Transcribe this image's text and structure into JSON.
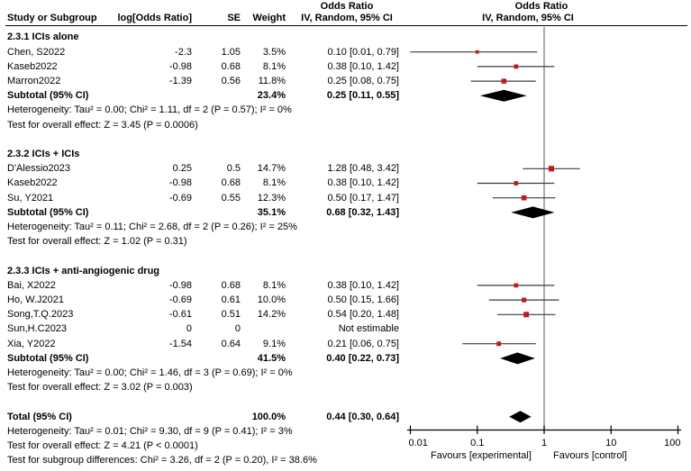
{
  "header": {
    "col_study": "Study or Subgroup",
    "col_logor": "log[Odds Ratio]",
    "col_se": "SE",
    "col_weight": "Weight",
    "or_title": "Odds Ratio",
    "or_method": "IV, Random, 95% CI",
    "or_title_plot": "Odds Ratio",
    "or_method_plot": "IV, Random, 95% CI"
  },
  "colors": {
    "marker": "#c0181e",
    "diamond": "#000000",
    "ci_line": "#3c3c3c",
    "ref_line": "#808080",
    "axis": "#000000",
    "text": "#000000",
    "background": "#ffffff"
  },
  "chart_data": {
    "type": "forest",
    "effect_measure": "Odds Ratio",
    "model": "IV, Random, 95% CI",
    "axis": {
      "scale": "log",
      "min": 0.01,
      "max": 100,
      "ticks": [
        {
          "v": 0.01,
          "label": "0.01"
        },
        {
          "v": 0.1,
          "label": "0.1"
        },
        {
          "v": 1,
          "label": "1"
        },
        {
          "v": 10,
          "label": "10"
        },
        {
          "v": 100,
          "label": "100"
        }
      ],
      "favours_left": "Favours [experimental]",
      "favours_right": "Favours [control]"
    },
    "rows": [
      {
        "type": "section",
        "label": "2.3.1 ICIs alone"
      },
      {
        "type": "study",
        "label": "Chen, S2022",
        "logor": "-2.3",
        "se": "1.05",
        "weight": "3.5%",
        "ci": "0.10 [0.01, 0.79]",
        "est": 0.1,
        "lo": 0.01,
        "hi": 0.79,
        "w": 3.5
      },
      {
        "type": "study",
        "label": "Kaseb2022",
        "logor": "-0.98",
        "se": "0.68",
        "weight": "8.1%",
        "ci": "0.38 [0.10, 1.42]",
        "est": 0.38,
        "lo": 0.1,
        "hi": 1.42,
        "w": 8.1
      },
      {
        "type": "study",
        "label": "Marron2022",
        "logor": "-1.39",
        "se": "0.56",
        "weight": "11.8%",
        "ci": "0.25 [0.08, 0.75]",
        "est": 0.25,
        "lo": 0.08,
        "hi": 0.75,
        "w": 11.8
      },
      {
        "type": "subtotal",
        "label": "Subtotal (95% CI)",
        "weight": "23.4%",
        "ci": "0.25 [0.11, 0.55]",
        "est": 0.25,
        "lo": 0.11,
        "hi": 0.55
      },
      {
        "type": "note",
        "label": "Heterogeneity: Tau² = 0.00; Chi² = 1.11, df = 2 (P = 0.57); I² = 0%"
      },
      {
        "type": "note",
        "label": "Test for overall effect: Z = 3.45 (P = 0.0006)"
      },
      {
        "type": "blank"
      },
      {
        "type": "section",
        "label": "2.3.2 ICIs + ICIs"
      },
      {
        "type": "study",
        "label": "D'Alessio2023",
        "logor": "0.25",
        "se": "0.5",
        "weight": "14.7%",
        "ci": "1.28 [0.48, 3.42]",
        "est": 1.28,
        "lo": 0.48,
        "hi": 3.42,
        "w": 14.7
      },
      {
        "type": "study",
        "label": "Kaseb2022",
        "logor": "-0.98",
        "se": "0.68",
        "weight": "8.1%",
        "ci": "0.38 [0.10, 1.42]",
        "est": 0.38,
        "lo": 0.1,
        "hi": 1.42,
        "w": 8.1
      },
      {
        "type": "study",
        "label": "Su, Y2021",
        "logor": "-0.69",
        "se": "0.55",
        "weight": "12.3%",
        "ci": "0.50 [0.17, 1.47]",
        "est": 0.5,
        "lo": 0.17,
        "hi": 1.47,
        "w": 12.3
      },
      {
        "type": "subtotal",
        "label": "Subtotal (95% CI)",
        "weight": "35.1%",
        "ci": "0.68 [0.32, 1.43]",
        "est": 0.68,
        "lo": 0.32,
        "hi": 1.43
      },
      {
        "type": "note",
        "label": "Heterogeneity: Tau² = 0.11; Chi² = 2.68, df = 2 (P = 0.26); I² = 25%"
      },
      {
        "type": "note",
        "label": "Test for overall effect: Z = 1.02 (P = 0.31)"
      },
      {
        "type": "blank"
      },
      {
        "type": "section",
        "label": "2.3.3 ICIs + anti-angiogenic drug"
      },
      {
        "type": "study",
        "label": "Bai, X2022",
        "logor": "-0.98",
        "se": "0.68",
        "weight": "8.1%",
        "ci": "0.38 [0.10, 1.42]",
        "est": 0.38,
        "lo": 0.1,
        "hi": 1.42,
        "w": 8.1
      },
      {
        "type": "study",
        "label": "Ho, W.J2021",
        "logor": "-0.69",
        "se": "0.61",
        "weight": "10.0%",
        "ci": "0.50 [0.15, 1.66]",
        "est": 0.5,
        "lo": 0.15,
        "hi": 1.66,
        "w": 10.0
      },
      {
        "type": "study",
        "label": "Song,T.Q.2023",
        "logor": "-0.61",
        "se": "0.51",
        "weight": "14.2%",
        "ci": "0.54 [0.20, 1.48]",
        "est": 0.54,
        "lo": 0.2,
        "hi": 1.48,
        "w": 14.2
      },
      {
        "type": "study",
        "label": "Sun,H.C2023",
        "logor": "0",
        "se": "0",
        "weight": "",
        "ci": "Not estimable"
      },
      {
        "type": "study",
        "label": "Xia, Y2022",
        "logor": "-1.54",
        "se": "0.64",
        "weight": "9.1%",
        "ci": "0.21 [0.06, 0.75]",
        "est": 0.21,
        "lo": 0.06,
        "hi": 0.75,
        "w": 9.1
      },
      {
        "type": "subtotal",
        "label": "Subtotal (95% CI)",
        "weight": "41.5%",
        "ci": "0.40 [0.22, 0.73]",
        "est": 0.4,
        "lo": 0.22,
        "hi": 0.73
      },
      {
        "type": "note",
        "label": "Heterogeneity: Tau² = 0.00; Chi² = 1.46, df = 3 (P = 0.69); I² = 0%"
      },
      {
        "type": "note",
        "label": "Test for overall effect: Z = 3.02 (P = 0.003)"
      },
      {
        "type": "blank"
      },
      {
        "type": "total",
        "label": "Total (95% CI)",
        "weight": "100.0%",
        "ci": "0.44 [0.30, 0.64]",
        "est": 0.44,
        "lo": 0.3,
        "hi": 0.64
      },
      {
        "type": "note",
        "label": "Heterogeneity: Tau² = 0.01; Chi² = 9.30, df = 9 (P = 0.41); I² = 3%"
      },
      {
        "type": "note",
        "label": "Test for overall effect: Z = 4.21 (P < 0.0001)"
      },
      {
        "type": "note",
        "label": "Test for subgroup differences: Chi² = 3.26, df = 2 (P = 0.20), I² = 38.6%"
      }
    ]
  }
}
